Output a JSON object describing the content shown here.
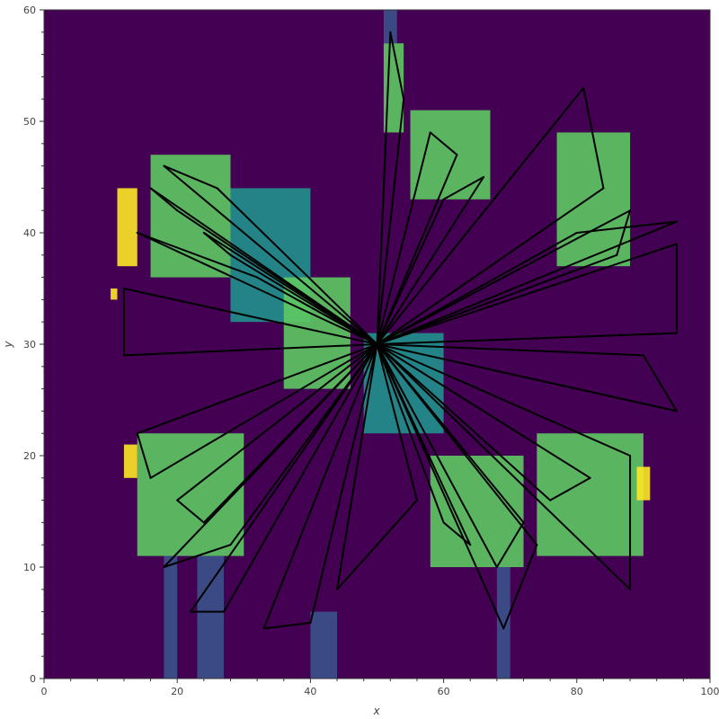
{
  "chart_data": {
    "type": "heatmap",
    "title": "",
    "xlabel": "x",
    "ylabel": "y",
    "xlim": [
      0,
      100
    ],
    "ylim": [
      0,
      60
    ],
    "x_ticks": [
      0,
      20,
      40,
      60,
      80,
      100
    ],
    "y_ticks": [
      0,
      10,
      20,
      30,
      40,
      50,
      60
    ],
    "x_tick_labels": [
      "0",
      "20",
      "40",
      "60",
      "80",
      "100"
    ],
    "y_tick_labels": [
      "0",
      "10",
      "20",
      "30",
      "40",
      "50",
      "60"
    ],
    "colormap": [
      "#440154",
      "#3b528b",
      "#21918c",
      "#5ec962",
      "#fde725"
    ],
    "background_color": "#440154",
    "heatmap_cells": [
      {
        "x0": 16,
        "x1": 28,
        "y0": 36,
        "y1": 47,
        "v": 0.75
      },
      {
        "x0": 11,
        "x1": 14,
        "y0": 37,
        "y1": 44,
        "v": 1.0
      },
      {
        "x0": 28,
        "x1": 40,
        "y0": 32,
        "y1": 44,
        "v": 0.6
      },
      {
        "x0": 36,
        "x1": 46,
        "y0": 26,
        "y1": 36,
        "v": 0.65
      },
      {
        "x0": 51,
        "x1": 54,
        "y0": 49,
        "y1": 57,
        "v": 0.8
      },
      {
        "x0": 55,
        "x1": 67,
        "y0": 43,
        "y1": 51,
        "v": 0.7
      },
      {
        "x0": 77,
        "x1": 88,
        "y0": 37,
        "y1": 49,
        "v": 0.75
      },
      {
        "x0": 14,
        "x1": 30,
        "y0": 11,
        "y1": 22,
        "v": 0.7
      },
      {
        "x0": 48,
        "x1": 60,
        "y0": 22,
        "y1": 31,
        "v": 0.5
      },
      {
        "x0": 58,
        "x1": 72,
        "y0": 10,
        "y1": 20,
        "v": 0.65
      },
      {
        "x0": 74,
        "x1": 90,
        "y0": 11,
        "y1": 22,
        "v": 0.7
      },
      {
        "x0": 10,
        "x1": 11,
        "y0": 34,
        "y1": 35,
        "v": 1.0
      },
      {
        "x0": 12,
        "x1": 14,
        "y0": 18,
        "y1": 21,
        "v": 1.0
      },
      {
        "x0": 89,
        "x1": 91,
        "y0": 16,
        "y1": 19,
        "v": 1.0
      },
      {
        "x0": 89,
        "x1": 100,
        "y0": 23,
        "y1": 40,
        "v": 0.12
      },
      {
        "x0": 18,
        "x1": 20,
        "y0": 0,
        "y1": 11,
        "v": 0.35
      },
      {
        "x0": 23,
        "x1": 27,
        "y0": 0,
        "y1": 11,
        "v": 0.2
      },
      {
        "x0": 40,
        "x1": 44,
        "y0": 0,
        "y1": 6,
        "v": 0.25
      },
      {
        "x0": 68,
        "x1": 70,
        "y0": 0,
        "y1": 10,
        "v": 0.3
      },
      {
        "x0": 51,
        "x1": 53,
        "y0": 57,
        "y1": 60,
        "v": 0.15
      }
    ],
    "trajectory_center": [
      50,
      30
    ],
    "trajectory_targets": [
      [
        16,
        44
      ],
      [
        20,
        42
      ],
      [
        24,
        40
      ],
      [
        28,
        38
      ],
      [
        32,
        36
      ],
      [
        14,
        40
      ],
      [
        18,
        46
      ],
      [
        26,
        44
      ],
      [
        52,
        58
      ],
      [
        54,
        52
      ],
      [
        58,
        49
      ],
      [
        62,
        47
      ],
      [
        66,
        45
      ],
      [
        60,
        43
      ],
      [
        81,
        53
      ],
      [
        84,
        44
      ],
      [
        88,
        42
      ],
      [
        86,
        38
      ],
      [
        80,
        40
      ],
      [
        95,
        41
      ],
      [
        95,
        39
      ],
      [
        95,
        31
      ],
      [
        95,
        24
      ],
      [
        90,
        29
      ],
      [
        12,
        29
      ],
      [
        12,
        35
      ],
      [
        14,
        22
      ],
      [
        16,
        18
      ],
      [
        20,
        16
      ],
      [
        24,
        14
      ],
      [
        28,
        12
      ],
      [
        18,
        10
      ],
      [
        22,
        6
      ],
      [
        27,
        6
      ],
      [
        33,
        4.5
      ],
      [
        40,
        5
      ],
      [
        44,
        8
      ],
      [
        56,
        16
      ],
      [
        60,
        14
      ],
      [
        64,
        12
      ],
      [
        68,
        10
      ],
      [
        72,
        14
      ],
      [
        76,
        16
      ],
      [
        82,
        18
      ],
      [
        88,
        20
      ],
      [
        88,
        8
      ],
      [
        69,
        4.5
      ],
      [
        74,
        12
      ]
    ]
  }
}
